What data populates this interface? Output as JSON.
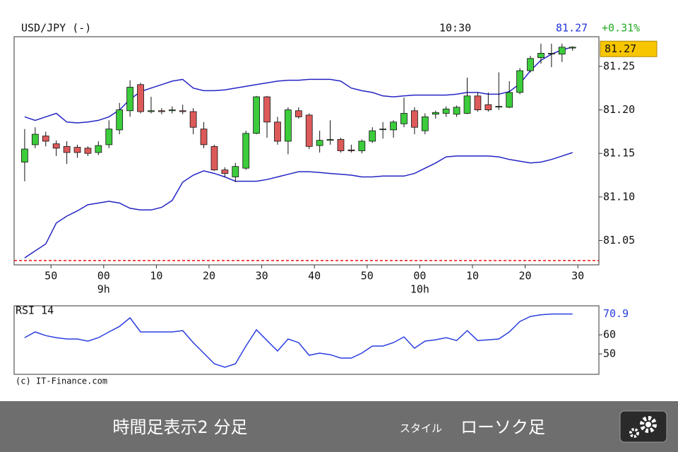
{
  "header": {
    "symbol": "USD/JPY (-)",
    "time": "10:30",
    "price": 81.27,
    "change": "+0.31%"
  },
  "chart_data": [
    {
      "type": "candlestick",
      "x": [
        525,
        527,
        529,
        531,
        533,
        535,
        537,
        539,
        541,
        543,
        545,
        547,
        549,
        551,
        553,
        555,
        557,
        559,
        561,
        563,
        565,
        567,
        569,
        571,
        573,
        575,
        577,
        579,
        581,
        583,
        585,
        587,
        589,
        591,
        593,
        595,
        597,
        599,
        601,
        603,
        605,
        607,
        609,
        611,
        613,
        615,
        617,
        619,
        621,
        623,
        625,
        627,
        629
      ],
      "open": [
        81.14,
        81.16,
        81.17,
        81.161,
        81.158,
        81.157,
        81.156,
        81.151,
        81.16,
        81.177,
        81.199,
        81.229,
        81.198,
        81.199,
        81.199,
        81.199,
        81.198,
        81.178,
        81.158,
        81.131,
        81.123,
        81.133,
        81.173,
        81.215,
        81.186,
        81.164,
        81.199,
        81.194,
        81.159,
        81.165,
        81.166,
        81.154,
        81.153,
        81.164,
        81.178,
        81.177,
        81.184,
        81.199,
        81.176,
        81.195,
        81.196,
        81.195,
        81.196,
        81.216,
        81.206,
        81.204,
        81.203,
        81.22,
        81.245,
        81.26,
        81.265,
        81.264,
        81.271
      ],
      "high": [
        81.178,
        81.18,
        81.175,
        81.165,
        81.164,
        81.16,
        81.158,
        81.164,
        81.188,
        81.208,
        81.234,
        81.231,
        81.215,
        81.202,
        81.204,
        81.206,
        81.202,
        81.186,
        81.16,
        81.134,
        81.139,
        81.176,
        81.216,
        81.216,
        81.192,
        81.203,
        81.203,
        81.196,
        81.176,
        81.188,
        81.168,
        81.16,
        81.166,
        81.18,
        81.186,
        81.188,
        81.214,
        81.203,
        81.196,
        81.199,
        81.204,
        81.205,
        81.237,
        81.22,
        81.22,
        81.243,
        81.233,
        81.248,
        81.262,
        81.276,
        81.276,
        81.276,
        81.273
      ],
      "low": [
        81.118,
        81.156,
        81.158,
        81.147,
        81.138,
        81.145,
        81.147,
        81.148,
        81.156,
        81.172,
        81.192,
        81.196,
        81.196,
        81.195,
        81.196,
        81.195,
        81.172,
        81.156,
        81.13,
        81.123,
        81.117,
        81.131,
        81.172,
        81.168,
        81.16,
        81.149,
        81.19,
        81.155,
        81.151,
        81.16,
        81.151,
        81.151,
        81.15,
        81.162,
        81.167,
        81.168,
        81.18,
        81.172,
        81.172,
        81.19,
        81.192,
        81.192,
        81.195,
        81.198,
        81.198,
        81.2,
        81.202,
        81.218,
        81.243,
        81.253,
        81.249,
        81.255,
        81.268
      ],
      "close": [
        81.155,
        81.172,
        81.164,
        81.156,
        81.151,
        81.151,
        81.15,
        81.159,
        81.178,
        81.2,
        81.226,
        81.198,
        81.199,
        81.198,
        81.2,
        81.198,
        81.18,
        81.16,
        81.131,
        81.127,
        81.135,
        81.173,
        81.215,
        81.186,
        81.164,
        81.2,
        81.192,
        81.158,
        81.165,
        81.166,
        81.153,
        81.153,
        81.164,
        81.176,
        81.178,
        81.186,
        81.196,
        81.18,
        81.192,
        81.197,
        81.201,
        81.203,
        81.216,
        81.2,
        81.2,
        81.204,
        81.22,
        81.245,
        81.259,
        81.265,
        81.265,
        81.272,
        81.272
      ],
      "up_color": "#3ccc3c",
      "down_color": "#dd5a5a",
      "bands": [
        {
          "color": "#2424c4",
          "values": [
            81.192,
            81.188,
            81.192,
            81.196,
            81.186,
            81.185,
            81.186,
            81.188,
            81.192,
            81.2,
            81.212,
            81.221,
            81.225,
            81.229,
            81.233,
            81.235,
            81.225,
            81.222,
            81.222,
            81.223,
            81.225,
            81.227,
            81.229,
            81.231,
            81.233,
            81.234,
            81.234,
            81.235,
            81.235,
            81.235,
            81.233,
            81.225,
            81.222,
            81.22,
            81.216,
            81.215,
            81.216,
            81.217,
            81.217,
            81.217,
            81.217,
            81.218,
            81.22,
            81.22,
            81.218,
            81.218,
            81.221,
            81.23,
            81.245,
            81.257,
            81.264,
            81.269,
            81.272
          ]
        },
        {
          "color": "#2424c4",
          "values": [
            81.03,
            81.038,
            81.046,
            81.07,
            81.078,
            81.084,
            81.091,
            81.093,
            81.095,
            81.093,
            81.087,
            81.085,
            81.085,
            81.088,
            81.096,
            81.117,
            81.125,
            81.13,
            81.127,
            81.123,
            81.118,
            81.118,
            81.118,
            81.12,
            81.123,
            81.126,
            81.129,
            81.129,
            81.128,
            81.127,
            81.126,
            81.125,
            81.123,
            81.123,
            81.124,
            81.124,
            81.124,
            81.127,
            81.133,
            81.139,
            81.146,
            81.147,
            81.147,
            81.147,
            81.147,
            81.146,
            81.143,
            81.141,
            81.139,
            81.14,
            81.143,
            81.147,
            81.151
          ]
        }
      ],
      "ref_line": 81.027,
      "ref_line_color": "#ee1111",
      "last_price": 81.27,
      "last_label_color": "#f7c600",
      "xlim": [
        523,
        634
      ],
      "xticks": [
        {
          "value": 530,
          "label": "50"
        },
        {
          "value": 540,
          "label": "00"
        },
        {
          "value": 550,
          "label": "10"
        },
        {
          "value": 560,
          "label": "20"
        },
        {
          "value": 570,
          "label": "30"
        },
        {
          "value": 580,
          "label": "40"
        },
        {
          "value": 590,
          "label": "50"
        },
        {
          "value": 600,
          "label": "00"
        },
        {
          "value": 610,
          "label": "10"
        },
        {
          "value": 620,
          "label": "20"
        },
        {
          "value": 630,
          "label": "30"
        }
      ],
      "x_sublabels": [
        {
          "value": 540,
          "label": "9h"
        },
        {
          "value": 600,
          "label": "10h"
        }
      ],
      "ylim": [
        81.022,
        81.284
      ],
      "yticks": [
        81.05,
        {
          "value": 81.1,
          "label": "81.10"
        },
        81.15,
        {
          "value": 81.2,
          "label": "81.20"
        },
        81.25
      ]
    },
    {
      "type": "line",
      "title": "RSI 14",
      "x": [
        525,
        527,
        529,
        531,
        533,
        535,
        537,
        539,
        541,
        543,
        545,
        547,
        549,
        551,
        553,
        555,
        557,
        559,
        561,
        563,
        565,
        567,
        569,
        571,
        573,
        575,
        577,
        579,
        581,
        583,
        585,
        587,
        589,
        591,
        593,
        595,
        597,
        599,
        601,
        603,
        605,
        607,
        609,
        611,
        613,
        615,
        617,
        619,
        621,
        623,
        625,
        627,
        629
      ],
      "values": [
        58.5,
        61.5,
        59.6,
        58.5,
        57.8,
        57.8,
        56.7,
        58.5,
        61.5,
        64.4,
        68.9,
        61.5,
        61.5,
        61.5,
        61.5,
        62.2,
        55.9,
        50.4,
        44.8,
        43.0,
        44.8,
        54.1,
        62.6,
        57.0,
        51.5,
        57.8,
        55.9,
        49.3,
        50.4,
        49.6,
        47.8,
        47.8,
        50.4,
        54.1,
        54.1,
        55.9,
        58.9,
        53.0,
        56.7,
        57.4,
        58.5,
        57.0,
        62.2,
        57.0,
        57.4,
        57.8,
        61.5,
        67.0,
        69.6,
        70.5,
        70.9,
        70.9,
        70.9
      ],
      "color": "#2a3ee0",
      "last_value": 70.9,
      "xlim": [
        523,
        634
      ],
      "ylim": [
        39.3,
        75.2
      ],
      "yticks": [
        60,
        50
      ]
    }
  ],
  "copyright": "(c) IT-Finance.com",
  "footer": {
    "timeframe": "時間足表示2 分足",
    "style_label": "スタイル",
    "style_value": "ローソク足"
  }
}
